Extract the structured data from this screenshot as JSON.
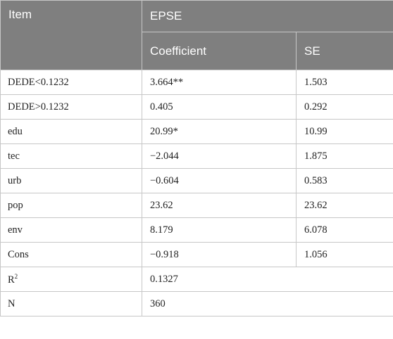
{
  "table": {
    "header": {
      "item": "Item",
      "group": "EPSE",
      "coefficient": "Coefficient",
      "se": "SE"
    },
    "rows": [
      {
        "item": "DEDE<0.1232",
        "coef": "3.664**",
        "se": "1.503"
      },
      {
        "item": "DEDE>0.1232",
        "coef": "0.405",
        "se": "0.292"
      },
      {
        "item": "edu",
        "coef": "20.99*",
        "se": "10.99"
      },
      {
        "item": "tec",
        "coef": "−2.044",
        "se": "1.875"
      },
      {
        "item": "urb",
        "coef": "−0.604",
        "se": "0.583"
      },
      {
        "item": "pop",
        "coef": "23.62",
        "se": "23.62"
      },
      {
        "item": "env",
        "coef": "8.179",
        "se": "6.078"
      },
      {
        "item": "Cons",
        "coef": "−0.918",
        "se": "1.056"
      }
    ],
    "r2": {
      "label_base": "R",
      "label_sup": "2",
      "value": "0.1327"
    },
    "n": {
      "label": "N",
      "value": "360"
    }
  },
  "colors": {
    "header_bg": "#7f7f7f",
    "header_text": "#ffffff",
    "border": "#c7c7c7"
  }
}
